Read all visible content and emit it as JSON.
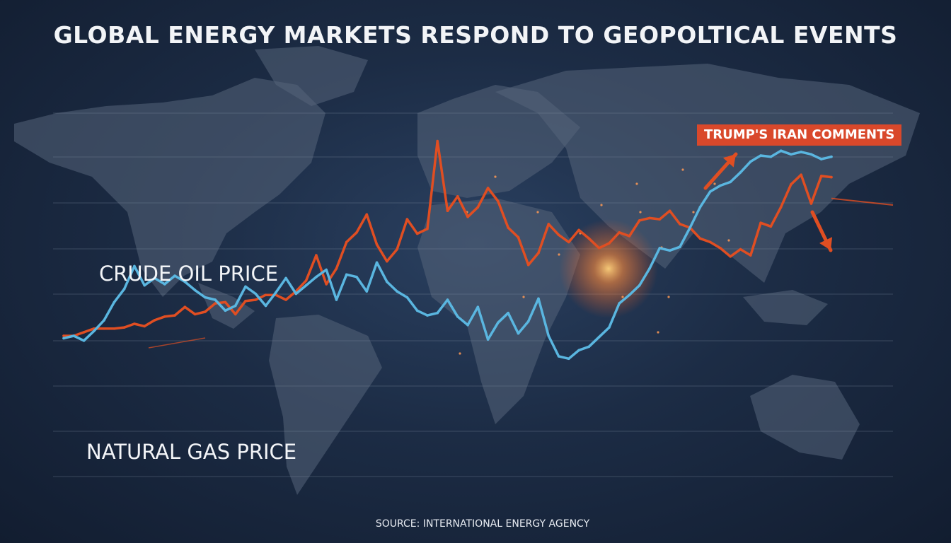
{
  "title": "GLOBAL ENERGY MARKETS RESPOND TO GEOPOLTICAL EVENTS",
  "source": "SOURCE: INTERNATIONAL ENERGY AGENCY",
  "annotation": "TRUMP'S IRAN COMMENTS",
  "colors": {
    "oil": "#e04e22",
    "gas": "#5ab6e0",
    "annotation_bg": "#d9482b",
    "background": "#1c2c45",
    "land": "#55647a"
  },
  "chart_data": {
    "type": "line",
    "title": "GLOBAL ENERGY MARKETS RESPOND TO GEOPOLTICAL EVENTS",
    "xlabel": "",
    "ylabel": "",
    "grid": true,
    "legend": "inline labels",
    "series": [
      {
        "name": "CRUDE OIL PRICE",
        "values": [
          50,
          50,
          53,
          56,
          56,
          56,
          57,
          60,
          58,
          63,
          66,
          67,
          74,
          68,
          70,
          77,
          78,
          68,
          79,
          80,
          84,
          84,
          80,
          87,
          96,
          117,
          93,
          106,
          128,
          136,
          151,
          126,
          112,
          122,
          147,
          135,
          139,
          212,
          154,
          166,
          149,
          157,
          173,
          162,
          140,
          132,
          109,
          119,
          143,
          134,
          128,
          138,
          131,
          123,
          127,
          136,
          133,
          146,
          148,
          147,
          154,
          143,
          140,
          131,
          128,
          123,
          116,
          122,
          117,
          144,
          141,
          157,
          176,
          184,
          160,
          183,
          182
        ]
      },
      {
        "name": "NATURAL GAS PRICE",
        "values": [
          48,
          50,
          46,
          54,
          63,
          78,
          89,
          108,
          92,
          98,
          93,
          100,
          95,
          88,
          82,
          80,
          71,
          75,
          91,
          85,
          75,
          86,
          98,
          85,
          92,
          99,
          105,
          80,
          101,
          99,
          87,
          111,
          95,
          87,
          82,
          71,
          67,
          69,
          80,
          66,
          59,
          74,
          47,
          61,
          69,
          52,
          62,
          81,
          50,
          33,
          31,
          38,
          41,
          49,
          57,
          77,
          84,
          92,
          106,
          123,
          121,
          124,
          140,
          157,
          170,
          175,
          178,
          186,
          195,
          200,
          199,
          204,
          201,
          203,
          201,
          197,
          199
        ]
      }
    ]
  }
}
